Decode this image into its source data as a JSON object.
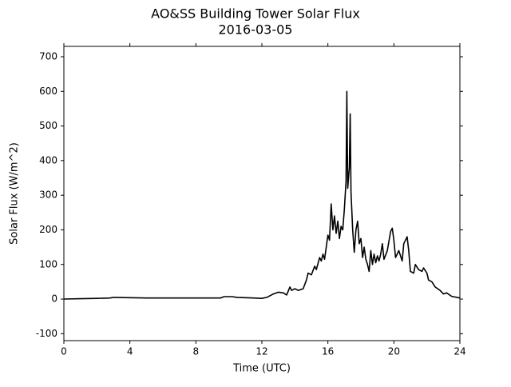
{
  "chart_data": {
    "type": "line",
    "title": "AO&SS Building Tower Solar Flux",
    "subtitle": "2016-03-05",
    "x_label": "Time (UTC)",
    "y_label": "Solar Flux (W/m^2)",
    "color": "#000000",
    "x": [
      0,
      1,
      2,
      2.8,
      3,
      4,
      5,
      6,
      7,
      8,
      9,
      9.5,
      9.7,
      10.2,
      10.5,
      11,
      11.5,
      12,
      12.3,
      12.7,
      13,
      13.3,
      13.5,
      13.7,
      13.8,
      14,
      14.2,
      14.5,
      14.7,
      14.8,
      15,
      15.2,
      15.3,
      15.5,
      15.6,
      15.7,
      15.8,
      15.9,
      16,
      16.1,
      16.2,
      16.3,
      16.4,
      16.5,
      16.6,
      16.7,
      16.8,
      16.9,
      17,
      17.1,
      17.15,
      17.2,
      17.3,
      17.35,
      17.4,
      17.5,
      17.6,
      17.7,
      17.8,
      17.9,
      18,
      18.1,
      18.2,
      18.3,
      18.4,
      18.5,
      18.6,
      18.7,
      18.8,
      18.9,
      19,
      19.1,
      19.2,
      19.3,
      19.4,
      19.6,
      19.8,
      19.9,
      20,
      20.1,
      20.3,
      20.5,
      20.6,
      20.8,
      20.9,
      21,
      21.2,
      21.3,
      21.5,
      21.7,
      21.8,
      22,
      22.1,
      22.3,
      22.5,
      22.8,
      23,
      23.2,
      23.5,
      24
    ],
    "values": [
      0,
      1,
      2,
      3,
      5,
      4,
      3,
      3,
      3,
      3,
      3,
      3,
      7,
      7,
      5,
      4,
      3,
      2,
      5,
      15,
      20,
      18,
      12,
      35,
      25,
      30,
      25,
      30,
      55,
      75,
      70,
      95,
      85,
      120,
      110,
      130,
      115,
      150,
      185,
      170,
      275,
      200,
      240,
      190,
      225,
      175,
      210,
      200,
      260,
      340,
      600,
      320,
      380,
      535,
      310,
      200,
      135,
      200,
      225,
      160,
      175,
      120,
      150,
      115,
      100,
      80,
      140,
      100,
      130,
      105,
      125,
      110,
      130,
      160,
      115,
      140,
      195,
      205,
      170,
      120,
      140,
      110,
      160,
      180,
      140,
      80,
      75,
      100,
      85,
      80,
      90,
      75,
      55,
      50,
      35,
      25,
      15,
      18,
      8,
      3
    ],
    "xlim": [
      0,
      24
    ],
    "xticks": [
      0,
      4,
      8,
      12,
      16,
      20,
      24
    ],
    "ylim": [
      -120,
      730
    ],
    "yticks": [
      -100,
      0,
      100,
      200,
      300,
      400,
      500,
      600,
      700
    ]
  }
}
